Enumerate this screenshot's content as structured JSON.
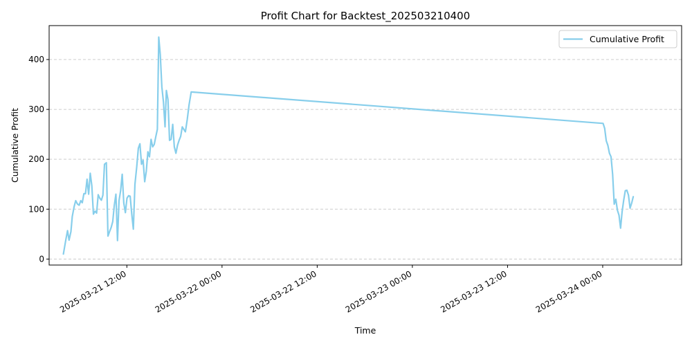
{
  "chart_data": {
    "type": "line",
    "title": "Profit Chart for Backtest_202503210400",
    "xlabel": "Time",
    "ylabel": "Cumulative Profit",
    "ylim": [
      -12,
      468
    ],
    "xlim": [
      "2025-03-21 02:12",
      "2025-03-24 09:57"
    ],
    "grid": "y-dashed",
    "legend_position": "top-right",
    "x_ticks": [
      {
        "t": "2025-03-21 12:00",
        "label": "2025-03-21 12:00"
      },
      {
        "t": "2025-03-22 00:00",
        "label": "2025-03-22 00:00"
      },
      {
        "t": "2025-03-22 12:00",
        "label": "2025-03-22 12:00"
      },
      {
        "t": "2025-03-23 00:00",
        "label": "2025-03-23 00:00"
      },
      {
        "t": "2025-03-23 12:00",
        "label": "2025-03-23 12:00"
      },
      {
        "t": "2025-03-24 00:00",
        "label": "2025-03-24 00:00"
      }
    ],
    "y_ticks": [
      0,
      100,
      200,
      300,
      400
    ],
    "series": [
      {
        "name": "Cumulative Profit",
        "color": "#87CEEB",
        "points": [
          [
            "2025-03-21 04:00",
            10
          ],
          [
            "2025-03-21 04:19",
            40
          ],
          [
            "2025-03-21 04:31",
            57
          ],
          [
            "2025-03-21 04:43",
            38
          ],
          [
            "2025-03-21 04:57",
            55
          ],
          [
            "2025-03-21 05:07",
            85
          ],
          [
            "2025-03-21 05:21",
            105
          ],
          [
            "2025-03-21 05:33",
            117
          ],
          [
            "2025-03-21 05:47",
            110
          ],
          [
            "2025-03-21 05:59",
            108
          ],
          [
            "2025-03-21 06:11",
            117
          ],
          [
            "2025-03-21 06:23",
            113
          ],
          [
            "2025-03-21 06:35",
            131
          ],
          [
            "2025-03-21 06:47",
            131
          ],
          [
            "2025-03-21 06:59",
            160
          ],
          [
            "2025-03-21 07:11",
            130
          ],
          [
            "2025-03-21 07:23",
            172
          ],
          [
            "2025-03-21 07:35",
            147
          ],
          [
            "2025-03-21 07:47",
            90
          ],
          [
            "2025-03-21 07:59",
            96
          ],
          [
            "2025-03-21 08:11",
            92
          ],
          [
            "2025-03-21 08:23",
            129
          ],
          [
            "2025-03-21 08:35",
            122
          ],
          [
            "2025-03-21 08:47",
            118
          ],
          [
            "2025-03-21 08:59",
            128
          ],
          [
            "2025-03-21 09:11",
            190
          ],
          [
            "2025-03-21 09:25",
            193
          ],
          [
            "2025-03-21 09:37",
            46
          ],
          [
            "2025-03-21 09:49",
            55
          ],
          [
            "2025-03-21 10:01",
            63
          ],
          [
            "2025-03-21 10:13",
            75
          ],
          [
            "2025-03-21 10:25",
            108
          ],
          [
            "2025-03-21 10:37",
            130
          ],
          [
            "2025-03-21 10:49",
            37
          ],
          [
            "2025-03-21 11:01",
            117
          ],
          [
            "2025-03-21 11:13",
            137
          ],
          [
            "2025-03-21 11:25",
            170
          ],
          [
            "2025-03-21 11:37",
            112
          ],
          [
            "2025-03-21 11:49",
            93
          ],
          [
            "2025-03-21 12:01",
            122
          ],
          [
            "2025-03-21 12:13",
            127
          ],
          [
            "2025-03-21 12:25",
            126
          ],
          [
            "2025-03-21 12:37",
            90
          ],
          [
            "2025-03-21 12:49",
            60
          ],
          [
            "2025-03-21 13:01",
            150
          ],
          [
            "2025-03-21 13:15",
            185
          ],
          [
            "2025-03-21 13:27",
            222
          ],
          [
            "2025-03-21 13:39",
            231
          ],
          [
            "2025-03-21 13:51",
            190
          ],
          [
            "2025-03-21 14:03",
            198
          ],
          [
            "2025-03-21 14:15",
            155
          ],
          [
            "2025-03-21 14:27",
            176
          ],
          [
            "2025-03-21 14:39",
            215
          ],
          [
            "2025-03-21 14:51",
            205
          ],
          [
            "2025-03-21 15:03",
            240
          ],
          [
            "2025-03-21 15:15",
            225
          ],
          [
            "2025-03-21 15:27",
            230
          ],
          [
            "2025-03-21 15:39",
            245
          ],
          [
            "2025-03-21 15:51",
            260
          ],
          [
            "2025-03-21 16:01",
            445
          ],
          [
            "2025-03-21 16:13",
            410
          ],
          [
            "2025-03-21 16:25",
            345
          ],
          [
            "2025-03-21 16:37",
            315
          ],
          [
            "2025-03-21 16:49",
            265
          ],
          [
            "2025-03-21 16:59",
            338
          ],
          [
            "2025-03-21 17:11",
            320
          ],
          [
            "2025-03-21 17:23",
            238
          ],
          [
            "2025-03-21 17:35",
            240
          ],
          [
            "2025-03-21 17:47",
            270
          ],
          [
            "2025-03-21 17:59",
            225
          ],
          [
            "2025-03-21 18:11",
            212
          ],
          [
            "2025-03-21 18:23",
            228
          ],
          [
            "2025-03-21 18:35",
            238
          ],
          [
            "2025-03-21 18:47",
            246
          ],
          [
            "2025-03-21 18:59",
            265
          ],
          [
            "2025-03-21 19:11",
            260
          ],
          [
            "2025-03-21 19:23",
            255
          ],
          [
            "2025-03-21 19:37",
            280
          ],
          [
            "2025-03-21 19:51",
            310
          ],
          [
            "2025-03-21 20:07",
            335
          ],
          [
            "2025-03-24 00:03",
            272
          ],
          [
            "2025-03-24 00:15",
            262
          ],
          [
            "2025-03-24 00:27",
            237
          ],
          [
            "2025-03-24 00:39",
            228
          ],
          [
            "2025-03-24 00:51",
            212
          ],
          [
            "2025-03-24 01:03",
            205
          ],
          [
            "2025-03-24 01:15",
            170
          ],
          [
            "2025-03-24 01:27",
            110
          ],
          [
            "2025-03-24 01:39",
            120
          ],
          [
            "2025-03-24 01:51",
            98
          ],
          [
            "2025-03-24 02:03",
            88
          ],
          [
            "2025-03-24 02:15",
            62
          ],
          [
            "2025-03-24 02:27",
            95
          ],
          [
            "2025-03-24 02:39",
            118
          ],
          [
            "2025-03-24 02:51",
            137
          ],
          [
            "2025-03-24 03:03",
            138
          ],
          [
            "2025-03-24 03:15",
            128
          ],
          [
            "2025-03-24 03:27",
            102
          ],
          [
            "2025-03-24 03:39",
            112
          ],
          [
            "2025-03-24 03:51",
            125
          ]
        ]
      }
    ]
  }
}
